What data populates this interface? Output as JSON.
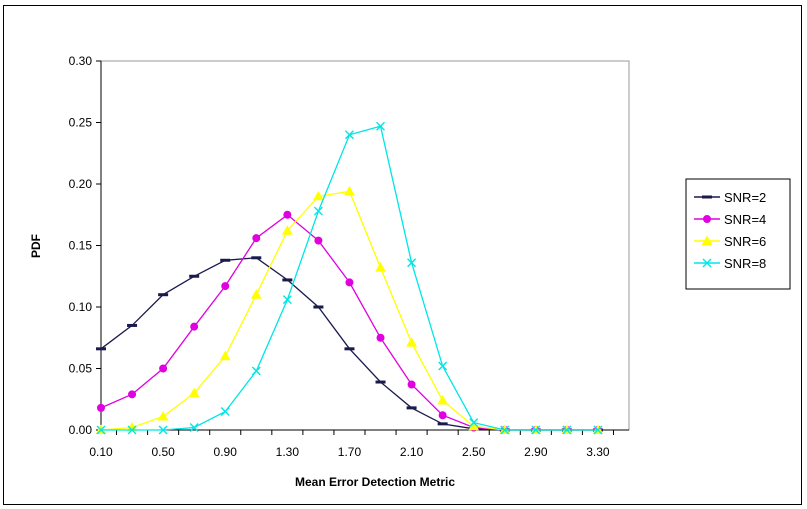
{
  "chart_data": {
    "type": "line",
    "xlabel": "Mean Error Detection Metric",
    "ylabel": "PDF",
    "xlim": [
      0.1,
      3.5
    ],
    "ylim": [
      0,
      0.3
    ],
    "x_tick_labels": [
      "0.10",
      "0.50",
      "0.90",
      "1.30",
      "1.70",
      "2.10",
      "2.50",
      "2.90",
      "3.30"
    ],
    "y_tick_labels": [
      "0.00",
      "0.05",
      "0.10",
      "0.15",
      "0.20",
      "0.25",
      "0.30"
    ],
    "grid": false,
    "legend_position": "right",
    "x": [
      0.1,
      0.3,
      0.5,
      0.7,
      0.9,
      1.1,
      1.3,
      1.5,
      1.7,
      1.9,
      2.1,
      2.3,
      2.5,
      2.7,
      2.9,
      3.1,
      3.3
    ],
    "series": [
      {
        "name": "SNR=2",
        "color": "#1a1a4d",
        "marker": "dash",
        "values": [
          0.066,
          0.085,
          0.11,
          0.125,
          0.138,
          0.14,
          0.122,
          0.1,
          0.066,
          0.039,
          0.018,
          0.005,
          0.001,
          0.0,
          0.0,
          0.0,
          0.0
        ]
      },
      {
        "name": "SNR=4",
        "color": "#e000e0",
        "marker": "circle",
        "values": [
          0.018,
          0.029,
          0.05,
          0.084,
          0.117,
          0.156,
          0.175,
          0.154,
          0.12,
          0.075,
          0.037,
          0.012,
          0.002,
          0.0,
          0.0,
          0.0,
          0.0
        ]
      },
      {
        "name": "SNR=6",
        "color": "#ffff00",
        "marker": "triangle",
        "values": [
          0.0,
          0.002,
          0.011,
          0.03,
          0.06,
          0.11,
          0.162,
          0.19,
          0.194,
          0.132,
          0.071,
          0.024,
          0.003,
          0.0,
          0.0,
          0.0,
          0.0
        ]
      },
      {
        "name": "SNR=8",
        "color": "#00e5e5",
        "marker": "x",
        "values": [
          0.0,
          0.0,
          0.0,
          0.002,
          0.015,
          0.048,
          0.106,
          0.178,
          0.24,
          0.247,
          0.136,
          0.052,
          0.006,
          0.0,
          0.0,
          0.0,
          0.0
        ]
      }
    ]
  }
}
